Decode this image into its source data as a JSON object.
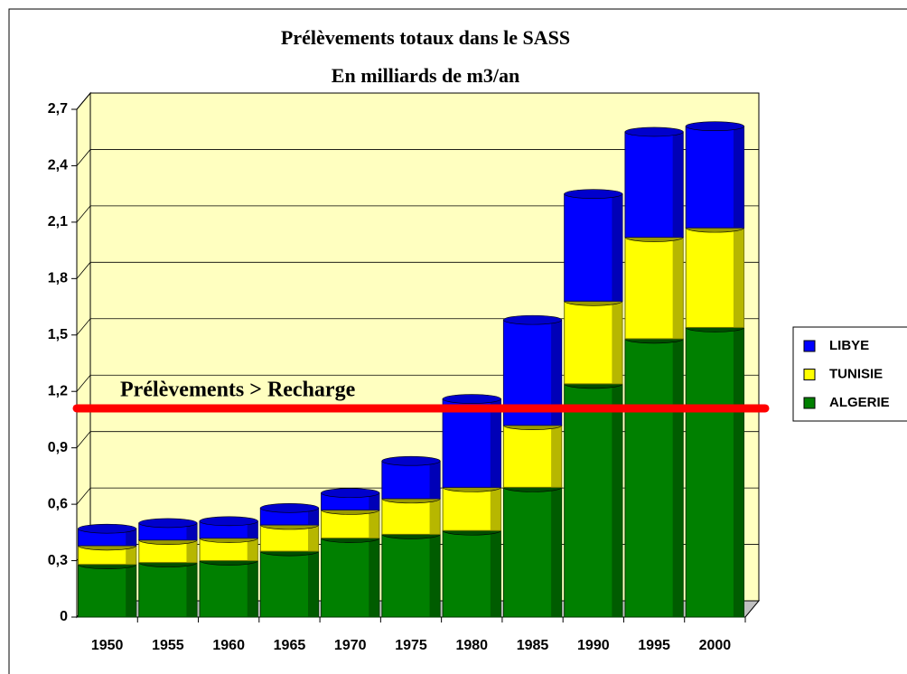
{
  "chart_data": {
    "type": "bar",
    "stacked": true,
    "title": "Prélèvements totaux dans le SASS",
    "subtitle": "En milliards de m3/an",
    "categories": [
      "1950",
      "1955",
      "1960",
      "1965",
      "1970",
      "1975",
      "1980",
      "1985",
      "1990",
      "1995",
      "2000"
    ],
    "series": [
      {
        "name": "ALGERIE",
        "color": "#008000",
        "values": [
          0.28,
          0.29,
          0.3,
          0.35,
          0.42,
          0.44,
          0.46,
          0.69,
          1.24,
          1.48,
          1.54
        ]
      },
      {
        "name": "TUNISIE",
        "color": "#ffff00",
        "values": [
          0.1,
          0.12,
          0.12,
          0.14,
          0.15,
          0.19,
          0.23,
          0.33,
          0.44,
          0.54,
          0.53
        ]
      },
      {
        "name": "LIBYE",
        "color": "#0000ff",
        "values": [
          0.09,
          0.09,
          0.09,
          0.09,
          0.09,
          0.2,
          0.47,
          0.56,
          0.57,
          0.56,
          0.54
        ]
      }
    ],
    "ylim": [
      0,
      2.7
    ],
    "yticks": [
      0,
      {
        "value": 0.3,
        "label": "0,3"
      },
      {
        "value": 0.6,
        "label": "0,6"
      },
      {
        "value": 0.9,
        "label": "0,9"
      },
      {
        "value": 1.2,
        "label": "1,2"
      },
      {
        "value": 1.5,
        "label": "1,5"
      },
      {
        "value": 1.8,
        "label": "1,8"
      },
      {
        "value": 2.1,
        "label": "2,1"
      },
      {
        "value": 2.4,
        "label": "2,4"
      },
      {
        "value": 2.7,
        "label": "2,7"
      }
    ],
    "grid": true,
    "legend": "right",
    "reference_line": {
      "value": 1.11,
      "label": "Prélèvements > Recharge",
      "color": "#ff0000"
    }
  }
}
